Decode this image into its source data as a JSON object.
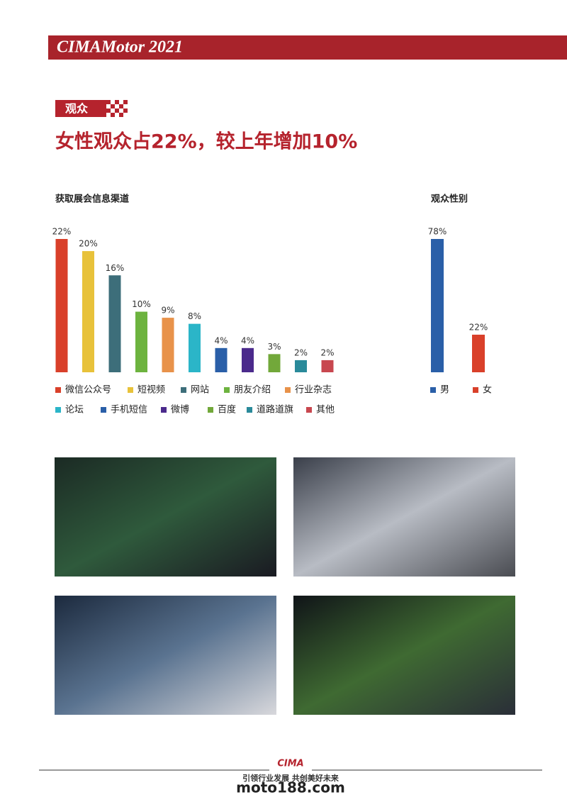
{
  "header": {
    "title": "CIMAMotor 2021"
  },
  "section": {
    "tag": "观众",
    "headline": "女性观众占22%，较上年增加10%"
  },
  "chart_data": [
    {
      "type": "bar",
      "title": "获取展会信息渠道",
      "categories": [
        "微信公众号",
        "短视频",
        "网站",
        "朋友介绍",
        "行业杂志",
        "论坛",
        "手机短信",
        "微博",
        "百度",
        "道路道旗",
        "其他"
      ],
      "values": [
        22,
        20,
        16,
        10,
        9,
        8,
        4,
        4,
        3,
        2,
        2
      ],
      "value_labels": [
        "22%",
        "20%",
        "16%",
        "10%",
        "9%",
        "8%",
        "4%",
        "4%",
        "3%",
        "2%",
        "2%"
      ],
      "colors": [
        "#d9402a",
        "#e8c23a",
        "#3d6e7a",
        "#6db33f",
        "#e8924a",
        "#2bb5c8",
        "#2a5fa8",
        "#4b2a8c",
        "#72a83a",
        "#2a8a9a",
        "#c8474f"
      ]
    },
    {
      "type": "bar",
      "title": "观众性别",
      "categories": [
        "男",
        "女"
      ],
      "values": [
        78,
        22
      ],
      "value_labels": [
        "78%",
        "22%"
      ],
      "colors": [
        "#2a5fa8",
        "#d9402a"
      ]
    }
  ],
  "footer": {
    "logo": "CIMA",
    "slogan": "引领行业发展 共创美好未来",
    "watermark": "moto188.com"
  }
}
